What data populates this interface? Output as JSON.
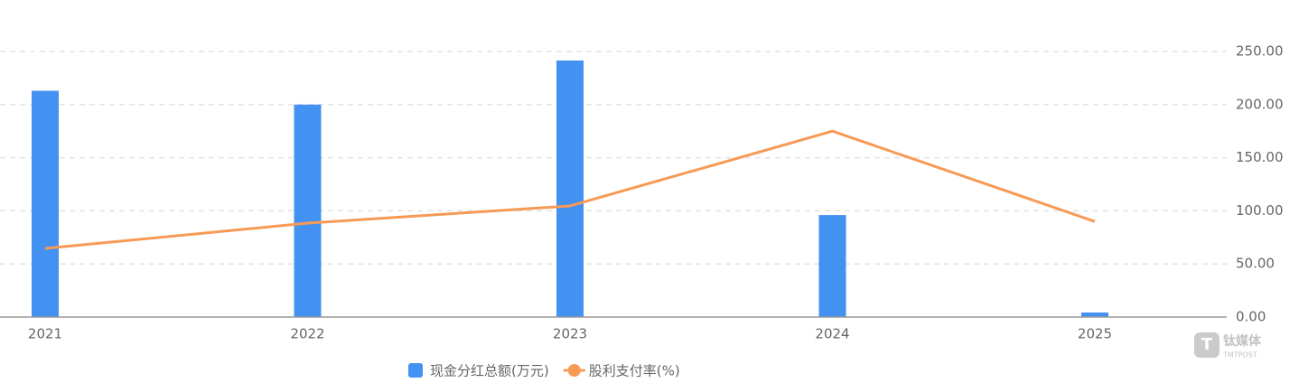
{
  "chart_data": {
    "type": "bar-line",
    "categories": [
      "2021",
      "2022",
      "2023",
      "2024",
      "2025"
    ],
    "series": [
      {
        "name": "现金分红总额(万元)",
        "color": "#4391f1",
        "type": "bar",
        "values": [
          213,
          200,
          241.5,
          96,
          4.3
        ]
      },
      {
        "name": "股利支付率(%)",
        "color": "#f79a55",
        "type": "line",
        "values": [
          64.6,
          88.4,
          104.6,
          175,
          90
        ]
      }
    ],
    "ylim": [
      0,
      250
    ],
    "yticks": [
      {
        "value": 0,
        "label": "0.00"
      },
      {
        "value": 50,
        "label": "50.00"
      },
      {
        "value": 100,
        "label": "100.00"
      },
      {
        "value": 150,
        "label": "150.00"
      },
      {
        "value": 200,
        "label": "200.00"
      },
      {
        "value": 250,
        "label": "250.00"
      }
    ],
    "grid": true,
    "legend": "bottom",
    "watermark": {
      "name": "钛媒体",
      "sub": "TMTPOST"
    }
  }
}
